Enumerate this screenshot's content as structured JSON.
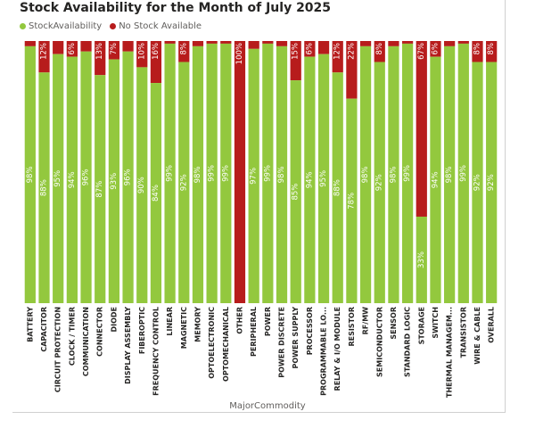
{
  "colors": {
    "in_stock": "#93c83e",
    "no_stock": "#b71c1c",
    "frame": "#d0d0d0"
  },
  "chart_data": {
    "type": "bar",
    "stacked": "100%",
    "title": "Stock Availability for the Month of July 2025",
    "xlabel": "MajorCommodity",
    "ylabel": "",
    "ylim": [
      0,
      100
    ],
    "legend_position": "top-left",
    "categories": [
      "BATTERY",
      "CAPACITOR",
      "CIRCUIT PROTECTION",
      "CLOCK / TIMER",
      "COMMUNICATION",
      "CONNECTOR",
      "DIODE",
      "DISPLAY ASSEMBLY",
      "FIBEROPTIC",
      "FREQUENCY CONTROL",
      "LINEAR",
      "MAGNETIC",
      "MEMORY",
      "OPTOELECTRONIC",
      "OPTOMECHANICAL",
      "OTHER",
      "PERIPHERAL",
      "POWER",
      "POWER DISCRETE",
      "POWER SUPPLY",
      "PROCESSOR",
      "PROGRAMMABLE LO...",
      "RELAY & I/O MODULE",
      "RESISTOR",
      "RF/MW",
      "SEMICONDUCTOR",
      "SENSOR",
      "STANDARD LOGIC",
      "STORAGE",
      "SWITCH",
      "THERMAL MANAGEM...",
      "TRANSISTOR",
      "WIRE & CABLE",
      "OVERALL"
    ],
    "series": [
      {
        "name": "StockAvailability",
        "values": [
          98,
          88,
          95,
          94,
          96,
          87,
          93,
          96,
          90,
          84,
          99,
          92,
          98,
          99,
          99,
          0,
          97,
          99,
          98,
          85,
          94,
          95,
          88,
          78,
          98,
          92,
          98,
          99,
          33,
          94,
          98,
          99,
          92,
          92
        ],
        "labels": [
          "98%",
          "88%",
          "95%",
          "94%",
          "96%",
          "87%",
          "93%",
          "96%",
          "90%",
          "84%",
          "99%",
          "92%",
          "98%",
          "99%",
          "99%",
          "",
          "97%",
          "99%",
          "98%",
          "85%",
          "94%",
          "95%",
          "88%",
          "78%",
          "98%",
          "92%",
          "98%",
          "99%",
          "33%",
          "94%",
          "98%",
          "99%",
          "92%",
          "92%"
        ]
      },
      {
        "name": "No Stock Available",
        "values": [
          2,
          12,
          5,
          6,
          4,
          13,
          7,
          4,
          10,
          16,
          1,
          8,
          2,
          1,
          1,
          100,
          3,
          1,
          2,
          15,
          6,
          5,
          12,
          22,
          2,
          8,
          2,
          1,
          67,
          6,
          2,
          1,
          8,
          8
        ],
        "labels": [
          "",
          "12%",
          "",
          "6%",
          "",
          "13%",
          "7%",
          "",
          "10%",
          "16%",
          "",
          "8%",
          "",
          "",
          "",
          "100%",
          "",
          "",
          "",
          "15%",
          "6%",
          "",
          "12%",
          "22%",
          "",
          "8%",
          "",
          "",
          "67%",
          "6%",
          "",
          "",
          "8%",
          "8%"
        ]
      }
    ]
  }
}
